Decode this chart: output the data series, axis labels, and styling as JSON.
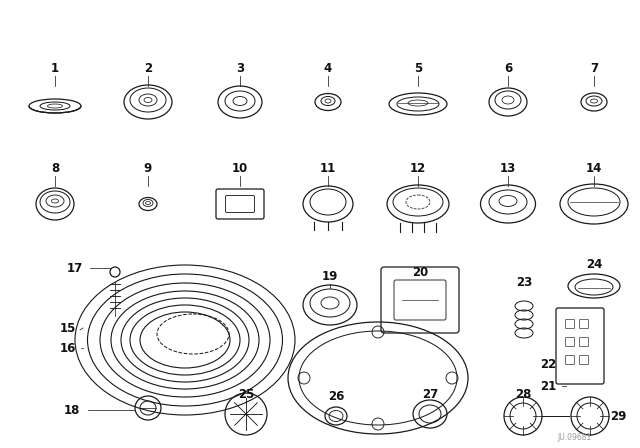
{
  "bg_color": "#ffffff",
  "line_color": "#1a1a1a",
  "fig_width": 6.4,
  "fig_height": 4.48,
  "dpi": 100,
  "part_number_fontsize": 8.5,
  "watermark": "JU.09681",
  "watermark_fontsize": 5.5,
  "watermark_color": "#999999",
  "label_color": "#111111"
}
